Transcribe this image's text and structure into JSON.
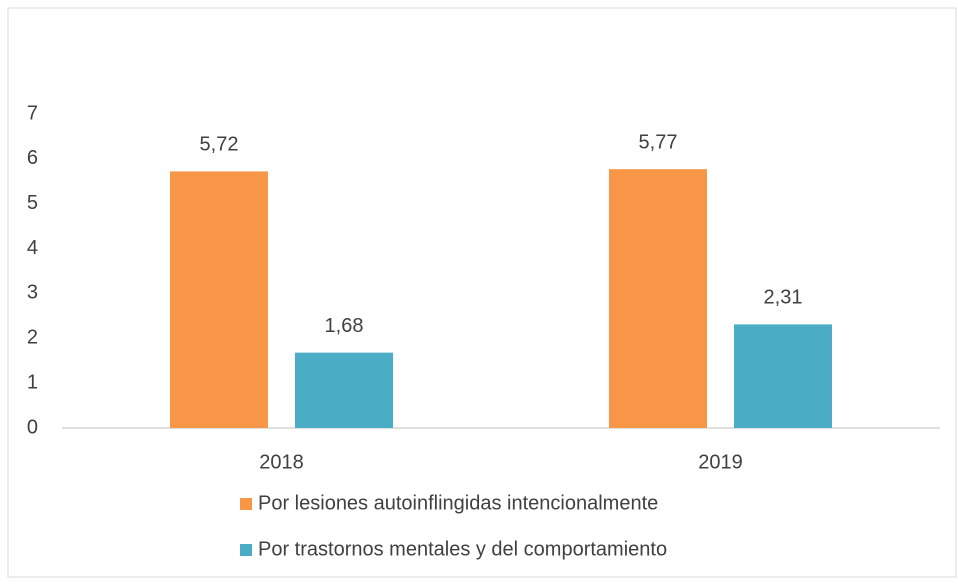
{
  "chart_data": {
    "type": "bar",
    "categories": [
      "2018",
      "2019"
    ],
    "series": [
      {
        "name": "Por lesiones autoinflingidas intencionalmente",
        "color": "#f79646",
        "values": [
          5.72,
          5.77
        ],
        "value_labels": [
          "5,72",
          "5,77"
        ]
      },
      {
        "name": "Por trastornos mentales y del comportamiento",
        "color": "#4bacc6",
        "values": [
          1.68,
          2.31
        ],
        "value_labels": [
          "1,68",
          "2,31"
        ]
      }
    ],
    "ylim": [
      0,
      7
    ],
    "yticks": [
      0,
      1,
      2,
      3,
      4,
      5,
      6,
      7
    ],
    "grid": false,
    "legend": "bottom"
  }
}
